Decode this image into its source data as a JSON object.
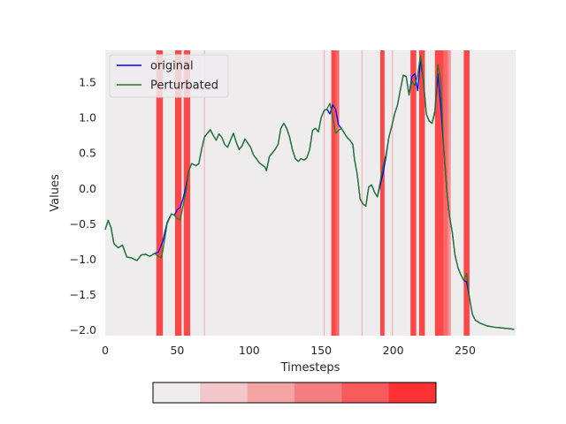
{
  "chart_data": {
    "type": "line",
    "xlabel": "Timesteps",
    "ylabel": "Values",
    "xlim": [
      0,
      285
    ],
    "ylim": [
      -2.08,
      1.95
    ],
    "x_ticks": [
      0,
      50,
      100,
      150,
      200,
      250
    ],
    "y_ticks": [
      -2.0,
      -1.5,
      -1.0,
      -0.5,
      0.0,
      0.5,
      1.0,
      1.5
    ],
    "x_tick_labels": [
      "0",
      "50",
      "100",
      "150",
      "200",
      "250"
    ],
    "y_tick_labels": [
      "−2.0",
      "−1.5",
      "−1.0",
      "−0.5",
      "0.0",
      "0.5",
      "1.0",
      "1.5"
    ],
    "grid": false,
    "background": "#efecee",
    "legend_placement": "top-left",
    "series": [
      {
        "name": "original",
        "color": "#0000ff",
        "points": [
          [
            0,
            -0.58
          ],
          [
            2,
            -0.45
          ],
          [
            4,
            -0.55
          ],
          [
            6,
            -0.78
          ],
          [
            9,
            -0.84
          ],
          [
            12,
            -0.8
          ],
          [
            15,
            -0.97
          ],
          [
            18,
            -0.98
          ],
          [
            22,
            -1.02
          ],
          [
            25,
            -0.94
          ],
          [
            28,
            -0.93
          ],
          [
            31,
            -0.96
          ],
          [
            34,
            -0.92
          ],
          [
            37,
            -0.9
          ],
          [
            40,
            -0.75
          ],
          [
            43,
            -0.48
          ],
          [
            46,
            -0.36
          ],
          [
            48,
            -0.38
          ],
          [
            50,
            -0.3
          ],
          [
            52,
            -0.27
          ],
          [
            54,
            -0.15
          ],
          [
            56,
            0.02
          ],
          [
            58,
            0.25
          ],
          [
            60,
            0.35
          ],
          [
            63,
            0.32
          ],
          [
            65,
            0.35
          ],
          [
            67,
            0.56
          ],
          [
            69,
            0.73
          ],
          [
            71,
            0.78
          ],
          [
            73,
            0.83
          ],
          [
            75,
            0.75
          ],
          [
            77,
            0.68
          ],
          [
            79,
            0.77
          ],
          [
            81,
            0.72
          ],
          [
            83,
            0.62
          ],
          [
            85,
            0.58
          ],
          [
            87,
            0.68
          ],
          [
            89,
            0.78
          ],
          [
            91,
            0.65
          ],
          [
            93,
            0.55
          ],
          [
            95,
            0.6
          ],
          [
            97,
            0.7
          ],
          [
            99,
            0.64
          ],
          [
            101,
            0.58
          ],
          [
            103,
            0.47
          ],
          [
            105,
            0.42
          ],
          [
            107,
            0.36
          ],
          [
            109,
            0.33
          ],
          [
            111,
            0.3
          ],
          [
            112,
            0.25
          ],
          [
            114,
            0.45
          ],
          [
            116,
            0.5
          ],
          [
            118,
            0.55
          ],
          [
            120,
            0.62
          ],
          [
            122,
            0.85
          ],
          [
            124,
            0.92
          ],
          [
            126,
            0.85
          ],
          [
            128,
            0.73
          ],
          [
            130,
            0.55
          ],
          [
            132,
            0.42
          ],
          [
            134,
            0.38
          ],
          [
            136,
            0.42
          ],
          [
            138,
            0.4
          ],
          [
            140,
            0.43
          ],
          [
            142,
            0.55
          ],
          [
            144,
            0.82
          ],
          [
            146,
            0.85
          ],
          [
            148,
            0.8
          ],
          [
            150,
            1.0
          ],
          [
            152,
            1.1
          ],
          [
            154,
            1.12
          ],
          [
            156,
            1.05
          ],
          [
            158,
            1.18
          ],
          [
            160,
            1.12
          ],
          [
            162,
            0.9
          ],
          [
            164,
            0.85
          ],
          [
            166,
            0.78
          ],
          [
            168,
            0.72
          ],
          [
            170,
            0.68
          ],
          [
            172,
            0.62
          ],
          [
            173,
            0.42
          ],
          [
            175,
            0.2
          ],
          [
            177,
            -0.15
          ],
          [
            179,
            -0.22
          ],
          [
            181,
            -0.25
          ],
          [
            183,
            0.02
          ],
          [
            185,
            0.05
          ],
          [
            187,
            -0.05
          ],
          [
            189,
            -0.12
          ],
          [
            191,
            0.05
          ],
          [
            193,
            0.22
          ],
          [
            195,
            0.45
          ],
          [
            197,
            0.72
          ],
          [
            199,
            0.88
          ],
          [
            201,
            1.05
          ],
          [
            203,
            1.18
          ],
          [
            205,
            1.4
          ],
          [
            207,
            1.6
          ],
          [
            209,
            1.58
          ],
          [
            211,
            1.32
          ],
          [
            213,
            1.58
          ],
          [
            215,
            1.62
          ],
          [
            217,
            1.38
          ],
          [
            219,
            1.82
          ],
          [
            221,
            1.52
          ],
          [
            223,
            1.05
          ],
          [
            225,
            0.95
          ],
          [
            227,
            0.92
          ],
          [
            229,
            1.08
          ],
          [
            231,
            1.62
          ],
          [
            233,
            1.18
          ],
          [
            235,
            0.6
          ],
          [
            237,
            0.02
          ],
          [
            239,
            -0.38
          ],
          [
            241,
            -0.62
          ],
          [
            243,
            -0.95
          ],
          [
            245,
            -1.12
          ],
          [
            247,
            -1.22
          ],
          [
            249,
            -1.3
          ],
          [
            251,
            -1.32
          ],
          [
            253,
            -1.55
          ],
          [
            255,
            -1.78
          ],
          [
            257,
            -1.86
          ],
          [
            260,
            -1.9
          ],
          [
            265,
            -1.94
          ],
          [
            270,
            -1.96
          ],
          [
            275,
            -1.97
          ],
          [
            280,
            -1.98
          ],
          [
            284,
            -1.99
          ]
        ]
      },
      {
        "name": "Perturbated",
        "color": "#1e7b1e",
        "points": [
          [
            0,
            -0.58
          ],
          [
            2,
            -0.45
          ],
          [
            4,
            -0.55
          ],
          [
            6,
            -0.78
          ],
          [
            9,
            -0.84
          ],
          [
            12,
            -0.8
          ],
          [
            15,
            -0.97
          ],
          [
            18,
            -0.98
          ],
          [
            22,
            -1.02
          ],
          [
            25,
            -0.94
          ],
          [
            28,
            -0.93
          ],
          [
            31,
            -0.96
          ],
          [
            34,
            -0.92
          ],
          [
            37,
            -0.96
          ],
          [
            39,
            -0.98
          ],
          [
            40,
            -0.88
          ],
          [
            43,
            -0.5
          ],
          [
            46,
            -0.36
          ],
          [
            48,
            -0.38
          ],
          [
            50,
            -0.42
          ],
          [
            52,
            -0.45
          ],
          [
            54,
            -0.25
          ],
          [
            56,
            -0.05
          ],
          [
            58,
            0.25
          ],
          [
            60,
            0.35
          ],
          [
            63,
            0.32
          ],
          [
            65,
            0.35
          ],
          [
            67,
            0.56
          ],
          [
            69,
            0.73
          ],
          [
            71,
            0.78
          ],
          [
            73,
            0.83
          ],
          [
            75,
            0.75
          ],
          [
            77,
            0.68
          ],
          [
            79,
            0.77
          ],
          [
            81,
            0.72
          ],
          [
            83,
            0.62
          ],
          [
            85,
            0.58
          ],
          [
            87,
            0.68
          ],
          [
            89,
            0.78
          ],
          [
            91,
            0.65
          ],
          [
            93,
            0.55
          ],
          [
            95,
            0.6
          ],
          [
            97,
            0.7
          ],
          [
            99,
            0.64
          ],
          [
            101,
            0.58
          ],
          [
            103,
            0.47
          ],
          [
            105,
            0.42
          ],
          [
            107,
            0.36
          ],
          [
            109,
            0.33
          ],
          [
            111,
            0.3
          ],
          [
            112,
            0.25
          ],
          [
            114,
            0.45
          ],
          [
            116,
            0.5
          ],
          [
            118,
            0.55
          ],
          [
            120,
            0.62
          ],
          [
            122,
            0.85
          ],
          [
            124,
            0.92
          ],
          [
            126,
            0.85
          ],
          [
            128,
            0.73
          ],
          [
            130,
            0.55
          ],
          [
            132,
            0.42
          ],
          [
            134,
            0.38
          ],
          [
            136,
            0.42
          ],
          [
            138,
            0.4
          ],
          [
            140,
            0.43
          ],
          [
            142,
            0.55
          ],
          [
            144,
            0.82
          ],
          [
            146,
            0.85
          ],
          [
            148,
            0.8
          ],
          [
            150,
            1.0
          ],
          [
            152,
            1.1
          ],
          [
            154,
            1.12
          ],
          [
            156,
            1.2
          ],
          [
            158,
            1.0
          ],
          [
            160,
            0.78
          ],
          [
            162,
            0.82
          ],
          [
            164,
            0.85
          ],
          [
            166,
            0.78
          ],
          [
            168,
            0.72
          ],
          [
            170,
            0.68
          ],
          [
            172,
            0.62
          ],
          [
            173,
            0.42
          ],
          [
            175,
            0.2
          ],
          [
            177,
            -0.15
          ],
          [
            179,
            -0.22
          ],
          [
            181,
            -0.25
          ],
          [
            183,
            0.02
          ],
          [
            185,
            0.05
          ],
          [
            187,
            -0.05
          ],
          [
            189,
            -0.12
          ],
          [
            191,
            0.1
          ],
          [
            193,
            0.32
          ],
          [
            195,
            0.48
          ],
          [
            197,
            0.72
          ],
          [
            199,
            0.88
          ],
          [
            201,
            1.05
          ],
          [
            203,
            1.18
          ],
          [
            205,
            1.4
          ],
          [
            207,
            1.6
          ],
          [
            209,
            1.58
          ],
          [
            211,
            1.32
          ],
          [
            213,
            1.52
          ],
          [
            215,
            1.45
          ],
          [
            217,
            1.6
          ],
          [
            219,
            1.88
          ],
          [
            221,
            1.52
          ],
          [
            223,
            1.05
          ],
          [
            225,
            0.95
          ],
          [
            227,
            0.92
          ],
          [
            229,
            1.1
          ],
          [
            231,
            1.75
          ],
          [
            233,
            1.55
          ],
          [
            235,
            0.6
          ],
          [
            237,
            0.02
          ],
          [
            239,
            -0.38
          ],
          [
            241,
            -0.62
          ],
          [
            243,
            -0.95
          ],
          [
            245,
            -1.12
          ],
          [
            247,
            -1.22
          ],
          [
            249,
            -1.3
          ],
          [
            251,
            -1.2
          ],
          [
            253,
            -1.55
          ],
          [
            255,
            -1.78
          ],
          [
            257,
            -1.86
          ],
          [
            260,
            -1.9
          ],
          [
            265,
            -1.94
          ],
          [
            270,
            -1.96
          ],
          [
            275,
            -1.97
          ],
          [
            280,
            -1.98
          ],
          [
            284,
            -1.99
          ]
        ]
      }
    ],
    "highlight_bands": [
      {
        "start": 35.5,
        "end": 40,
        "intensity": 1.0
      },
      {
        "start": 48.5,
        "end": 53,
        "intensity": 1.0
      },
      {
        "start": 54.5,
        "end": 59,
        "intensity": 1.0
      },
      {
        "start": 68.6,
        "end": 69.2,
        "intensity": 0.4
      },
      {
        "start": 151.8,
        "end": 152.4,
        "intensity": 0.4
      },
      {
        "start": 157,
        "end": 160,
        "intensity": 1.0
      },
      {
        "start": 160,
        "end": 162.5,
        "intensity": 0.8
      },
      {
        "start": 178,
        "end": 178.6,
        "intensity": 0.4
      },
      {
        "start": 191,
        "end": 194,
        "intensity": 1.0
      },
      {
        "start": 199.2,
        "end": 199.8,
        "intensity": 0.4
      },
      {
        "start": 212,
        "end": 216,
        "intensity": 1.0
      },
      {
        "start": 218,
        "end": 222,
        "intensity": 1.0
      },
      {
        "start": 229,
        "end": 235,
        "intensity": 1.0
      },
      {
        "start": 235,
        "end": 238,
        "intensity": 0.8
      },
      {
        "start": 238,
        "end": 240,
        "intensity": 0.55
      },
      {
        "start": 249,
        "end": 253,
        "intensity": 1.0
      }
    ],
    "colorbar": {
      "colors": [
        "#efecee",
        "#f3c7c9",
        "#f5a4a4",
        "#f57f80",
        "#f85b5c",
        "#fd3132"
      ]
    }
  }
}
